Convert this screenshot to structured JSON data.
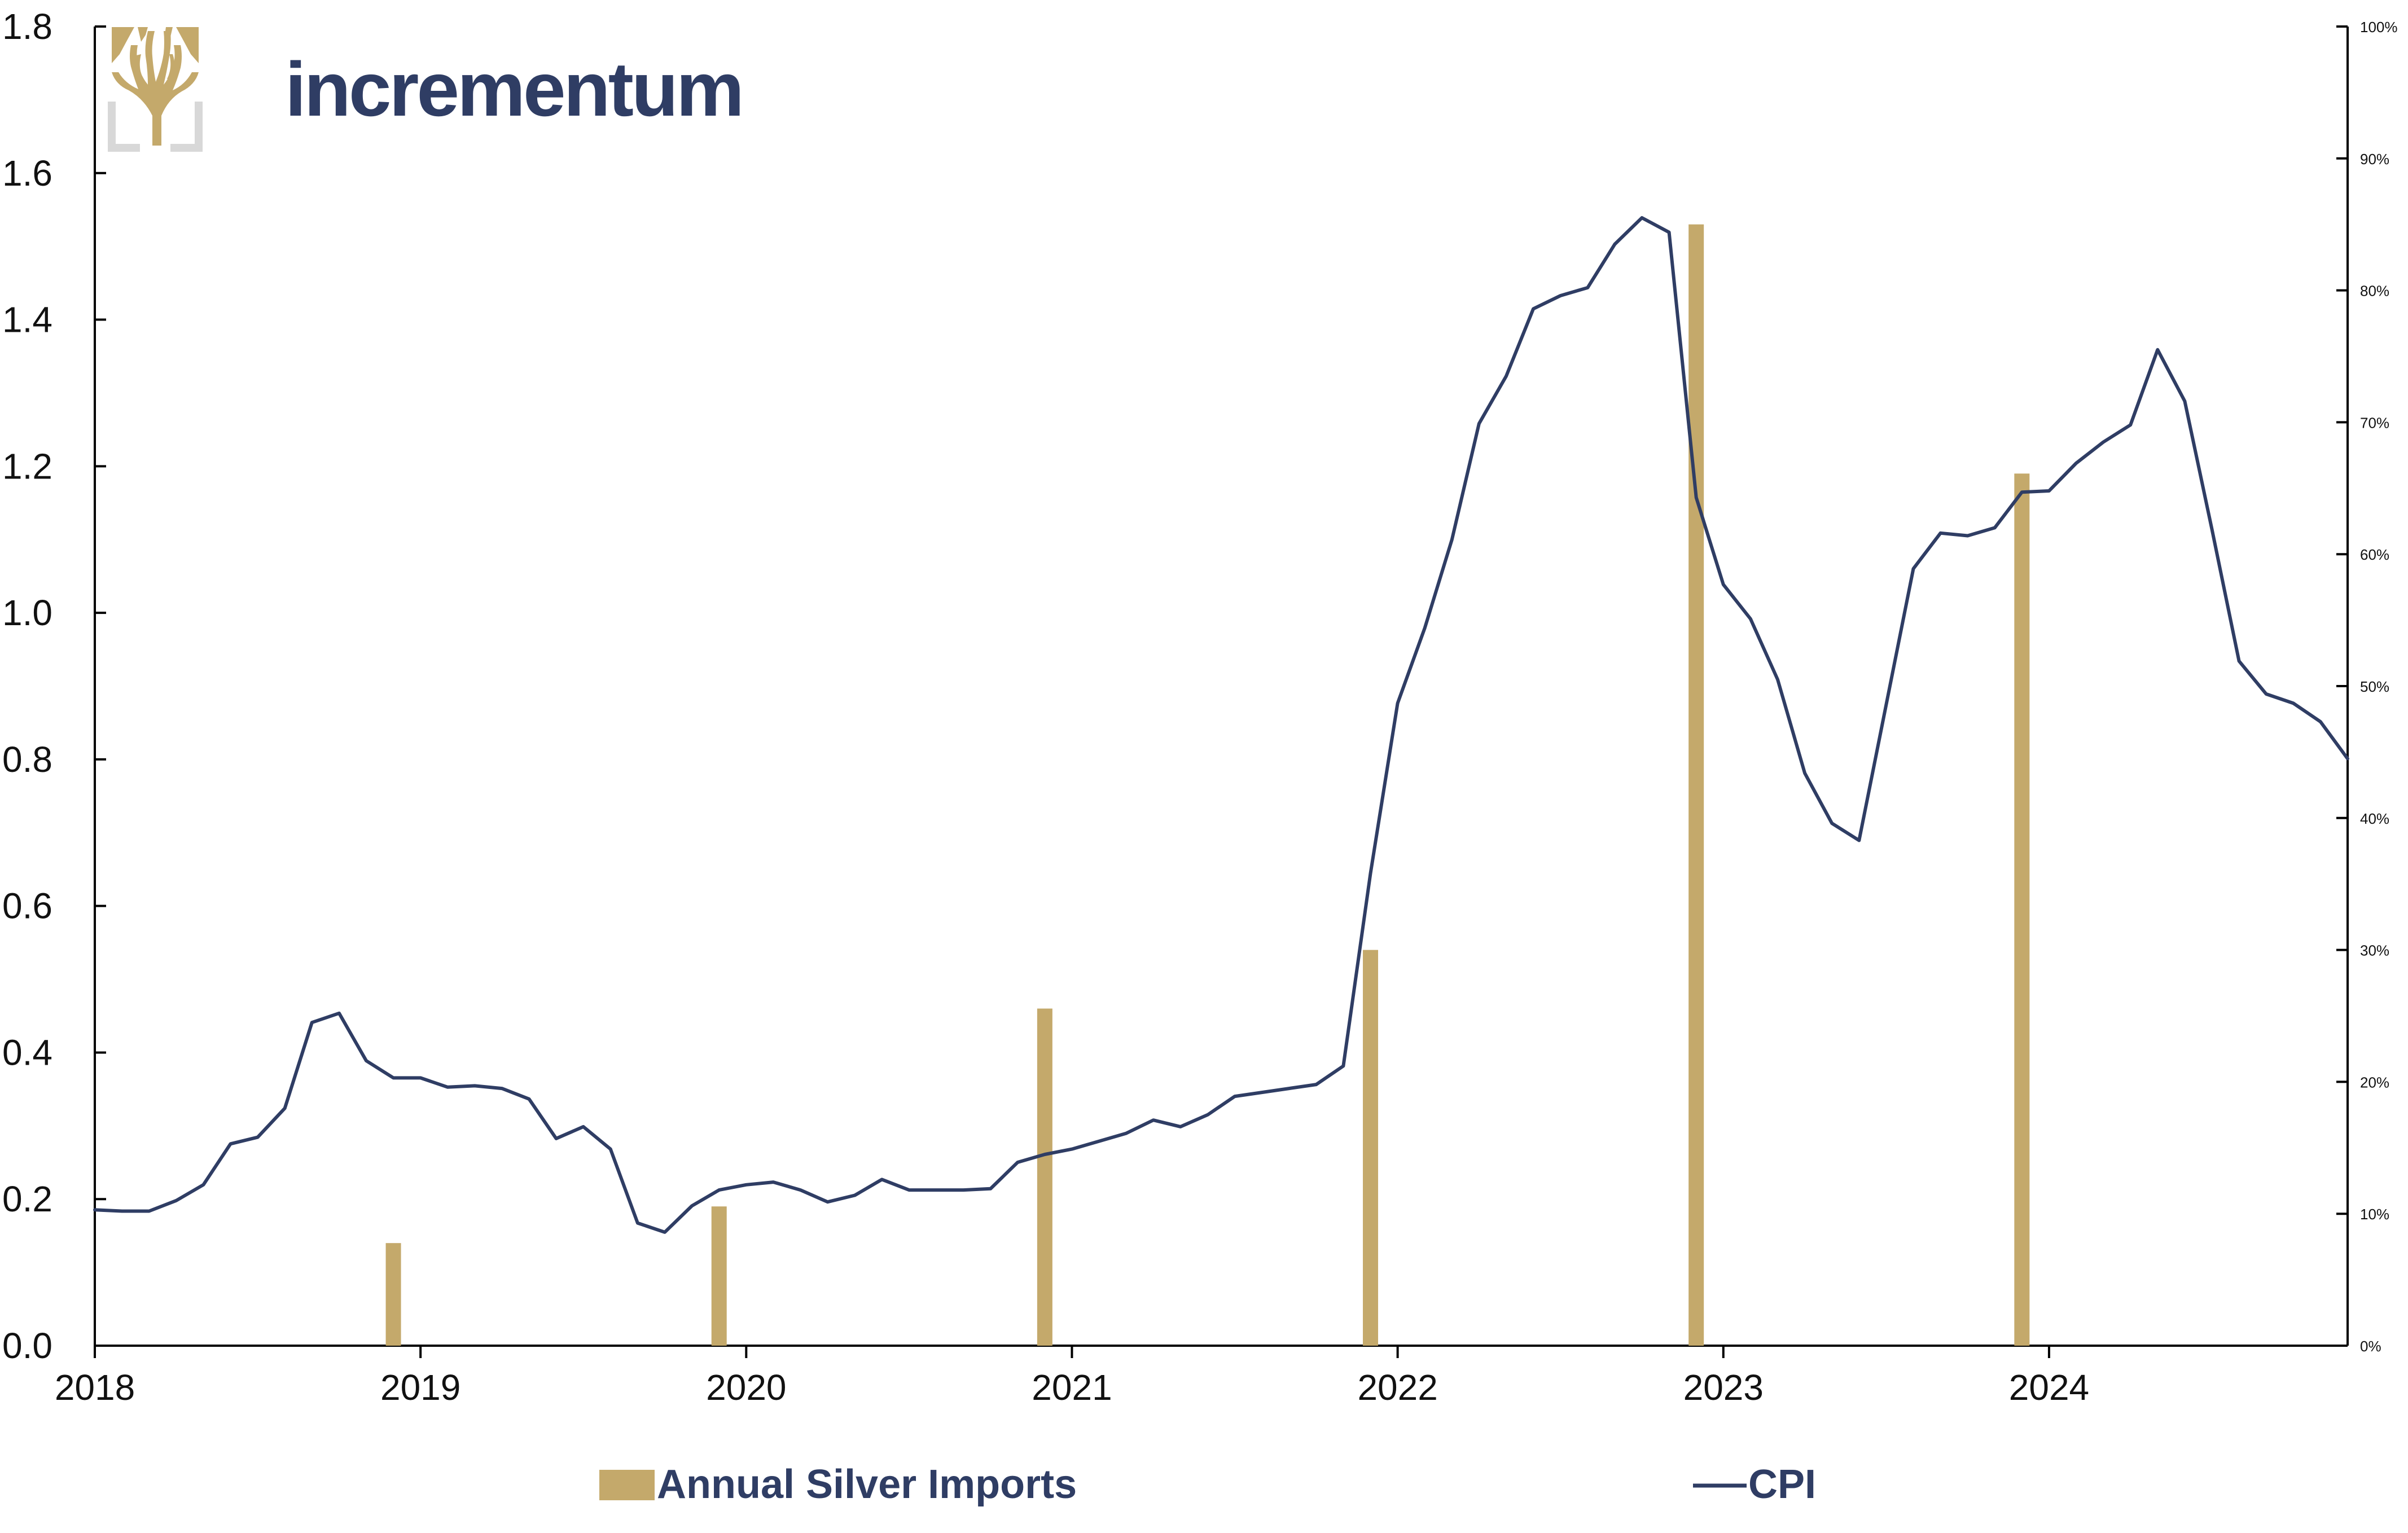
{
  "brand": {
    "name": "incrementum",
    "text_color": "#2f3d64",
    "logo_color": "#c4a96b",
    "logo_frame_color": "#d8d8d8"
  },
  "legend": {
    "bars_label": "Annual Silver Imports",
    "line_label": "CPI",
    "placement": "bottom-center"
  },
  "chart_data": {
    "type": "bar",
    "title": "",
    "xlabel": "",
    "ylabel": "",
    "grid": false,
    "x_range": [
      "2018-01",
      "2024-12"
    ],
    "x_ticks": [
      "2018",
      "2019",
      "2020",
      "2021",
      "2022",
      "2023",
      "2024"
    ],
    "y_left": {
      "ylim": [
        0,
        1.8
      ],
      "ticks": [
        "0.0",
        "0.2",
        "0.4",
        "0.6",
        "0.8",
        "1.0",
        "1.2",
        "1.4",
        "1.6",
        "1.8"
      ]
    },
    "y_right": {
      "ylim": [
        0,
        100
      ],
      "unit": "%",
      "ticks": [
        "0%",
        "10%",
        "20%",
        "30%",
        "40%",
        "50%",
        "60%",
        "70%",
        "80%",
        "90%",
        "100%"
      ]
    },
    "colors": {
      "bars": "#c4a96b",
      "line": "#2f3d64",
      "axis": "#000000"
    },
    "series": [
      {
        "name": "Annual Silver Imports",
        "type": "bar",
        "axis": "left",
        "x": [
          "2018-12",
          "2019-12",
          "2020-12",
          "2021-12",
          "2022-12",
          "2023-12"
        ],
        "values": [
          0.14,
          0.19,
          0.46,
          0.54,
          1.53,
          1.19
        ]
      },
      {
        "name": "CPI",
        "type": "line",
        "axis": "right",
        "x": [
          "2018-01",
          "2018-02",
          "2018-03",
          "2018-04",
          "2018-05",
          "2018-06",
          "2018-07",
          "2018-08",
          "2018-09",
          "2018-10",
          "2018-11",
          "2018-12",
          "2019-01",
          "2019-02",
          "2019-03",
          "2019-04",
          "2019-05",
          "2019-06",
          "2019-07",
          "2019-08",
          "2019-09",
          "2019-10",
          "2019-11",
          "2019-12",
          "2020-01",
          "2020-02",
          "2020-03",
          "2020-04",
          "2020-05",
          "2020-06",
          "2020-07",
          "2020-08",
          "2020-09",
          "2020-10",
          "2020-11",
          "2020-12",
          "2021-01",
          "2021-02",
          "2021-03",
          "2021-04",
          "2021-05",
          "2021-06",
          "2021-07",
          "2021-08",
          "2021-09",
          "2021-10",
          "2021-11",
          "2021-12",
          "2022-01",
          "2022-02",
          "2022-03",
          "2022-04",
          "2022-05",
          "2022-06",
          "2022-07",
          "2022-08",
          "2022-09",
          "2022-10",
          "2022-11",
          "2022-12",
          "2023-01",
          "2023-02",
          "2023-03",
          "2023-04",
          "2023-05",
          "2023-06",
          "2023-07",
          "2023-08",
          "2023-09",
          "2023-10",
          "2023-11",
          "2023-12",
          "2024-01",
          "2024-02",
          "2024-03",
          "2024-04",
          "2024-05",
          "2024-06",
          "2024-07",
          "2024-08",
          "2024-09",
          "2024-10",
          "2024-11",
          "2024-12"
        ],
        "values": [
          10.3,
          10.2,
          10.2,
          11.0,
          12.2,
          15.3,
          15.8,
          18.0,
          24.5,
          25.2,
          21.6,
          20.3,
          20.3,
          19.6,
          19.7,
          19.5,
          18.7,
          15.7,
          16.6,
          14.9,
          9.3,
          8.6,
          10.6,
          11.8,
          12.2,
          12.4,
          11.8,
          10.9,
          11.4,
          12.6,
          11.8,
          11.8,
          11.8,
          11.9,
          13.9,
          14.5,
          14.9,
          15.5,
          16.1,
          17.1,
          16.6,
          17.5,
          18.9,
          19.2,
          19.5,
          19.8,
          21.2,
          35.8,
          48.7,
          54.4,
          61.1,
          69.9,
          73.5,
          78.6,
          79.6,
          80.2,
          83.5,
          85.5,
          84.4,
          64.3,
          57.7,
          55.1,
          50.5,
          43.4,
          39.6,
          38.3,
          48.6,
          58.9,
          61.6,
          61.4,
          62.0,
          64.7,
          64.8,
          66.9,
          68.5,
          69.8,
          75.5,
          71.6,
          61.9,
          51.9,
          49.4,
          48.7,
          47.3,
          44.5
        ]
      }
    ]
  }
}
